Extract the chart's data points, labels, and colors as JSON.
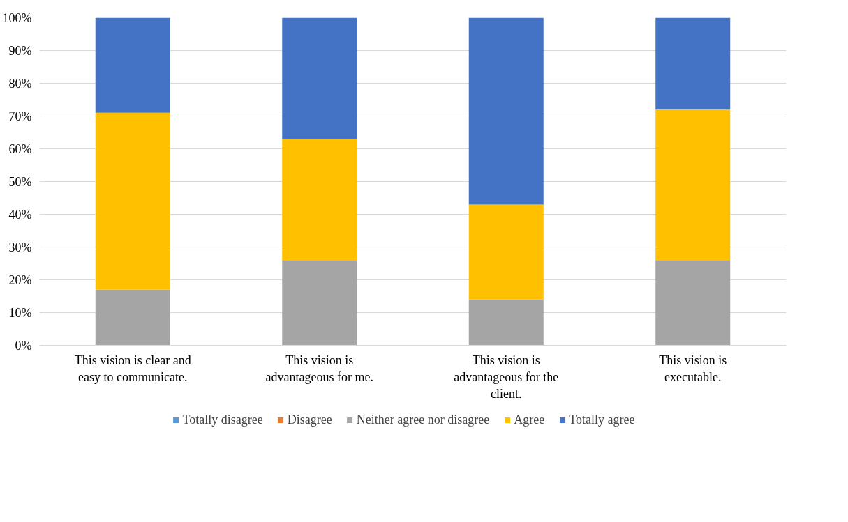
{
  "chart_data": {
    "type": "bar",
    "stacked": true,
    "categories": [
      "This vision is clear and easy to communicate.",
      "This vision is advantageous for me.",
      "This vision is advantageous for the client.",
      "This vision is executable."
    ],
    "series": [
      {
        "name": "Totally disagree",
        "color": "#5b9bd5",
        "values": [
          0,
          0,
          0,
          0
        ]
      },
      {
        "name": "Disagree",
        "color": "#ed7d31",
        "values": [
          0,
          0,
          0,
          0
        ]
      },
      {
        "name": "Neither agree nor disagree",
        "color": "#a5a5a5",
        "values": [
          17,
          26,
          14,
          26
        ]
      },
      {
        "name": "Agree",
        "color": "#ffc000",
        "values": [
          54,
          37,
          29,
          46
        ]
      },
      {
        "name": "Totally agree",
        "color": "#4472c4",
        "values": [
          29,
          37,
          57,
          28
        ]
      }
    ],
    "ylim": [
      0,
      100
    ],
    "yticks": [
      {
        "value": 0,
        "label": "0%"
      },
      {
        "value": 10,
        "label": "10%"
      },
      {
        "value": 20,
        "label": "20%"
      },
      {
        "value": 30,
        "label": "30%"
      },
      {
        "value": 40,
        "label": "40%"
      },
      {
        "value": 50,
        "label": "50%"
      },
      {
        "value": 60,
        "label": "60%"
      },
      {
        "value": 70,
        "label": "70%"
      },
      {
        "value": 80,
        "label": "80%"
      },
      {
        "value": 90,
        "label": "90%"
      },
      {
        "value": 100,
        "label": "100%"
      }
    ],
    "grid": "y",
    "legend": "bottom"
  }
}
